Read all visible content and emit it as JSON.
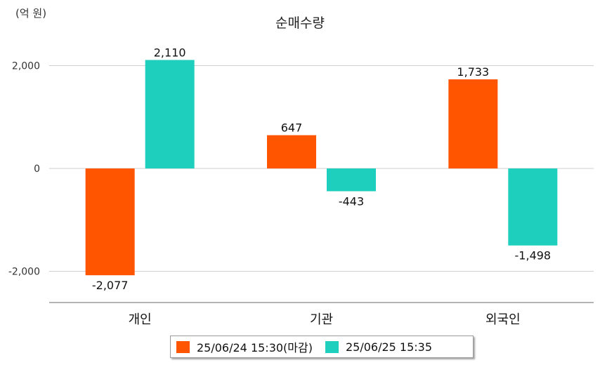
{
  "unit_label": "(억 원)",
  "chart_data": {
    "type": "bar",
    "title": "순매수량",
    "ylabel": "(억 원)",
    "xlabel": "",
    "categories": [
      "개인",
      "기관",
      "외국인"
    ],
    "series": [
      {
        "name": "25/06/24 15:30(마감)",
        "color": "#ff5500",
        "values": [
          -2077,
          647,
          1733
        ]
      },
      {
        "name": "25/06/25 15:35",
        "color": "#1ecfbd",
        "values": [
          2110,
          -443,
          -1498
        ]
      }
    ],
    "data_labels": [
      [
        "-2,077",
        "647",
        "1,733"
      ],
      [
        "2,110",
        "-443",
        "-1,498"
      ]
    ],
    "y_ticks": [
      {
        "value": 2000,
        "label": "2,000"
      },
      {
        "value": 0,
        "label": "0"
      },
      {
        "value": -2000,
        "label": "-2,000"
      }
    ],
    "ylim": [
      -2600,
      2600
    ],
    "grid": true,
    "legend_position": "bottom"
  }
}
